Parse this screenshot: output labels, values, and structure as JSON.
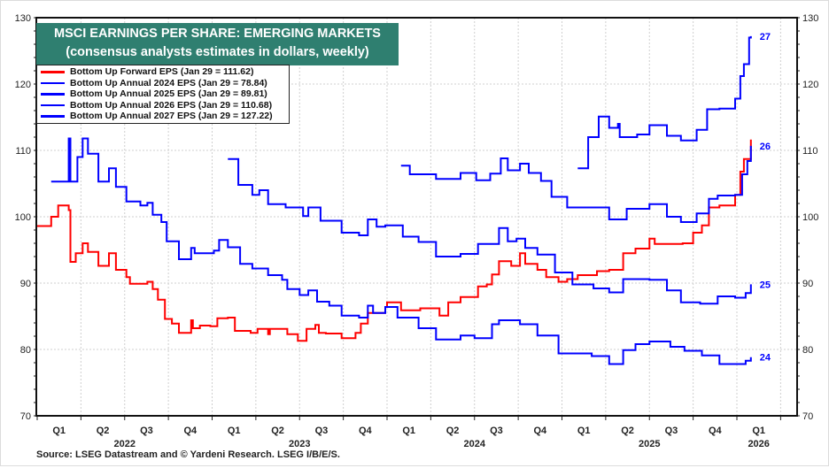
{
  "chart_data": {
    "type": "line",
    "title": "MSCI EARNINGS PER SHARE: EMERGING MARKETS",
    "subtitle": "(consensus analysts estimates in dollars, weekly)",
    "source": "Source: LSEG Datastream and © Yardeni Research. LSEG I/B/E/S.",
    "ylim": [
      70,
      130
    ],
    "xlim": [
      2022.0,
      2026.29
    ],
    "yticks": [
      "70",
      "80",
      "90",
      "100",
      "110",
      "120",
      "130"
    ],
    "quarter_labels": [
      "Q1",
      "Q2",
      "Q3",
      "Q4",
      "Q1",
      "Q2",
      "Q3",
      "Q4",
      "Q1",
      "Q2",
      "Q3",
      "Q4",
      "Q1",
      "Q2",
      "Q3",
      "Q4",
      "Q1"
    ],
    "year_labels": [
      "2022",
      "2023",
      "2024",
      "2025",
      "2026"
    ],
    "grid": true,
    "series": [
      {
        "name": "Bottom Up Forward EPS (Jan 29 = 111.62)",
        "color": "#ff0000",
        "end_label": "",
        "points": [
          [
            2022.0,
            98.6
          ],
          [
            2022.08,
            100
          ],
          [
            2022.12,
            101.7
          ],
          [
            2022.16,
            101.7
          ],
          [
            2022.18,
            101
          ],
          [
            2022.19,
            93.2
          ],
          [
            2022.22,
            94.5
          ],
          [
            2022.26,
            96
          ],
          [
            2022.29,
            94.7
          ],
          [
            2022.35,
            92.6
          ],
          [
            2022.41,
            94.5
          ],
          [
            2022.45,
            92
          ],
          [
            2022.51,
            90.9
          ],
          [
            2022.53,
            89.9
          ],
          [
            2022.63,
            90.2
          ],
          [
            2022.66,
            89.1
          ],
          [
            2022.69,
            87.5
          ],
          [
            2022.73,
            84.6
          ],
          [
            2022.77,
            83.9
          ],
          [
            2022.81,
            82.5
          ],
          [
            2022.88,
            84.4
          ],
          [
            2022.89,
            83.2
          ],
          [
            2022.93,
            83.6
          ],
          [
            2022.99,
            83.5
          ],
          [
            2023.03,
            84.7
          ],
          [
            2023.09,
            84.8
          ],
          [
            2023.13,
            82.8
          ],
          [
            2023.22,
            82.5
          ],
          [
            2023.26,
            83.1
          ],
          [
            2023.32,
            82.3
          ],
          [
            2023.33,
            83.1
          ],
          [
            2023.42,
            83.1
          ],
          [
            2023.43,
            82.3
          ],
          [
            2023.49,
            81.3
          ],
          [
            2023.54,
            83.1
          ],
          [
            2023.59,
            83.7
          ],
          [
            2023.61,
            82.5
          ],
          [
            2023.65,
            82.4
          ],
          [
            2023.74,
            81.7
          ],
          [
            2023.82,
            82.5
          ],
          [
            2023.85,
            83.9
          ],
          [
            2023.89,
            85.5
          ],
          [
            2023.99,
            86.4
          ],
          [
            2024.0,
            87.1
          ],
          [
            2024.08,
            85.9
          ],
          [
            2024.19,
            86.2
          ],
          [
            2024.28,
            86.2
          ],
          [
            2024.3,
            85.1
          ],
          [
            2024.35,
            87.1
          ],
          [
            2024.42,
            87.9
          ],
          [
            2024.49,
            87.9
          ],
          [
            2024.52,
            89.5
          ],
          [
            2024.57,
            89.8
          ],
          [
            2024.6,
            91.3
          ],
          [
            2024.64,
            93.3
          ],
          [
            2024.71,
            92.6
          ],
          [
            2024.76,
            94.5
          ],
          [
            2024.79,
            92.9
          ],
          [
            2024.86,
            92
          ],
          [
            2024.91,
            90.9
          ],
          [
            2024.98,
            90.2
          ],
          [
            2025.03,
            90.6
          ],
          [
            2025.09,
            91.2
          ],
          [
            2025.2,
            91.8
          ],
          [
            2025.27,
            92
          ],
          [
            2025.35,
            94.5
          ],
          [
            2025.42,
            95.2
          ],
          [
            2025.5,
            96.7
          ],
          [
            2025.53,
            95.9
          ],
          [
            2025.6,
            95.9
          ],
          [
            2025.69,
            96
          ],
          [
            2025.75,
            97.6
          ],
          [
            2025.8,
            98.7
          ],
          [
            2025.84,
            101.4
          ],
          [
            2025.9,
            101.7
          ],
          [
            2025.99,
            103.3
          ],
          [
            2026.02,
            106.8
          ],
          [
            2026.04,
            108.7
          ],
          [
            2026.08,
            111.62
          ]
        ]
      },
      {
        "name": "Bottom Up Annual 2024 EPS (Jan 29 = 78.84)",
        "color": "#0000ff",
        "end_label": "24",
        "points": [
          [
            2022.08,
            105.3
          ],
          [
            2022.17,
            105.3
          ],
          [
            2022.18,
            111.8
          ],
          [
            2022.19,
            105.3
          ],
          [
            2022.21,
            105.3
          ],
          [
            2022.23,
            109
          ],
          [
            2022.26,
            111.8
          ],
          [
            2022.29,
            109.5
          ],
          [
            2022.35,
            105.3
          ],
          [
            2022.41,
            107.3
          ],
          [
            2022.45,
            104.5
          ],
          [
            2022.51,
            102.3
          ],
          [
            2022.53,
            102.3
          ],
          [
            2022.59,
            101.7
          ],
          [
            2022.63,
            102.1
          ],
          [
            2022.66,
            100.3
          ],
          [
            2022.71,
            99.2
          ],
          [
            2022.74,
            96.3
          ],
          [
            2022.81,
            93.6
          ],
          [
            2022.88,
            95.3
          ],
          [
            2022.9,
            94.5
          ],
          [
            2023.01,
            94.9
          ],
          [
            2023.04,
            96.5
          ],
          [
            2023.09,
            95.4
          ],
          [
            2023.16,
            92.9
          ],
          [
            2023.23,
            92.2
          ],
          [
            2023.32,
            91.2
          ],
          [
            2023.4,
            90.5
          ],
          [
            2023.43,
            89.1
          ],
          [
            2023.5,
            88.2
          ],
          [
            2023.55,
            88.9
          ],
          [
            2023.6,
            87.2
          ],
          [
            2023.67,
            86.6
          ],
          [
            2023.74,
            85.1
          ],
          [
            2023.84,
            84.8
          ],
          [
            2023.89,
            86.6
          ],
          [
            2023.92,
            85.5
          ],
          [
            2023.99,
            86.4
          ],
          [
            2024.06,
            84.8
          ],
          [
            2024.18,
            83.2
          ],
          [
            2024.28,
            81.5
          ],
          [
            2024.42,
            82.1
          ],
          [
            2024.5,
            81.7
          ],
          [
            2024.6,
            83.8
          ],
          [
            2024.64,
            84.4
          ],
          [
            2024.76,
            83.8
          ],
          [
            2024.86,
            82.1
          ],
          [
            2024.98,
            79.4
          ],
          [
            2025.17,
            79
          ],
          [
            2025.27,
            77.8
          ],
          [
            2025.35,
            79.9
          ],
          [
            2025.42,
            80.8
          ],
          [
            2025.5,
            81.2
          ],
          [
            2025.62,
            80.4
          ],
          [
            2025.7,
            79.8
          ],
          [
            2025.8,
            79.1
          ],
          [
            2025.9,
            77.8
          ],
          [
            2026.05,
            78.3
          ],
          [
            2026.08,
            78.84
          ]
        ]
      },
      {
        "name": "Bottom Up Annual 2025 EPS (Jan 29 = 89.81)",
        "color": "#0000ff",
        "end_label": "25",
        "points": [
          [
            2023.09,
            108.7
          ],
          [
            2023.15,
            104.8
          ],
          [
            2023.23,
            103.3
          ],
          [
            2023.27,
            104
          ],
          [
            2023.32,
            101.9
          ],
          [
            2023.42,
            101.4
          ],
          [
            2023.52,
            100.1
          ],
          [
            2023.55,
            101.4
          ],
          [
            2023.62,
            99.4
          ],
          [
            2023.74,
            97.6
          ],
          [
            2023.84,
            97.2
          ],
          [
            2023.89,
            99.6
          ],
          [
            2023.94,
            98.5
          ],
          [
            2023.99,
            98.7
          ],
          [
            2024.09,
            97
          ],
          [
            2024.18,
            96.2
          ],
          [
            2024.28,
            94
          ],
          [
            2024.42,
            94.4
          ],
          [
            2024.52,
            95.9
          ],
          [
            2024.64,
            98.3
          ],
          [
            2024.69,
            96.3
          ],
          [
            2024.74,
            96.7
          ],
          [
            2024.79,
            95.3
          ],
          [
            2024.86,
            94.3
          ],
          [
            2024.96,
            91.6
          ],
          [
            2025.06,
            89.8
          ],
          [
            2025.18,
            89.2
          ],
          [
            2025.27,
            88.6
          ],
          [
            2025.35,
            90.6
          ],
          [
            2025.5,
            90.5
          ],
          [
            2025.6,
            88.9
          ],
          [
            2025.68,
            87.1
          ],
          [
            2025.79,
            86.9
          ],
          [
            2025.89,
            88
          ],
          [
            2025.99,
            87.8
          ],
          [
            2026.05,
            88.5
          ],
          [
            2026.08,
            89.81
          ]
        ]
      },
      {
        "name": "Bottom Up Annual 2026 EPS (Jan 29 = 110.68)",
        "color": "#0000ff",
        "end_label": "26",
        "points": [
          [
            2024.08,
            107.7
          ],
          [
            2024.13,
            106.4
          ],
          [
            2024.28,
            105.7
          ],
          [
            2024.42,
            106.6
          ],
          [
            2024.51,
            105.5
          ],
          [
            2024.59,
            106.5
          ],
          [
            2024.65,
            108.8
          ],
          [
            2024.69,
            107
          ],
          [
            2024.76,
            108
          ],
          [
            2024.81,
            106.6
          ],
          [
            2024.88,
            105.4
          ],
          [
            2024.94,
            103
          ],
          [
            2025.03,
            101.4
          ],
          [
            2025.17,
            101.4
          ],
          [
            2025.27,
            99.6
          ],
          [
            2025.37,
            101.2
          ],
          [
            2025.5,
            101.9
          ],
          [
            2025.6,
            100
          ],
          [
            2025.68,
            99.2
          ],
          [
            2025.77,
            100.5
          ],
          [
            2025.84,
            102.7
          ],
          [
            2025.89,
            103.2
          ],
          [
            2025.99,
            103.3
          ],
          [
            2026.03,
            106.4
          ],
          [
            2026.06,
            108.4
          ],
          [
            2026.08,
            110.68
          ]
        ]
      },
      {
        "name": "Bottom Up Annual 2027 EPS (Jan 29 = 127.22)",
        "color": "#0000ff",
        "end_label": "27",
        "points": [
          [
            2025.09,
            107.3
          ],
          [
            2025.14,
            107.3
          ],
          [
            2025.15,
            112
          ],
          [
            2025.21,
            115.1
          ],
          [
            2025.27,
            115.1
          ],
          [
            2025.27,
            113.4
          ],
          [
            2025.32,
            114
          ],
          [
            2025.33,
            112
          ],
          [
            2025.43,
            112.4
          ],
          [
            2025.5,
            113.8
          ],
          [
            2025.6,
            112.2
          ],
          [
            2025.68,
            111.5
          ],
          [
            2025.77,
            113.1
          ],
          [
            2025.83,
            116.2
          ],
          [
            2025.9,
            116.3
          ],
          [
            2025.99,
            117.8
          ],
          [
            2026.02,
            121.2
          ],
          [
            2026.04,
            123
          ],
          [
            2026.07,
            127
          ],
          [
            2026.08,
            127.22
          ]
        ]
      }
    ]
  }
}
